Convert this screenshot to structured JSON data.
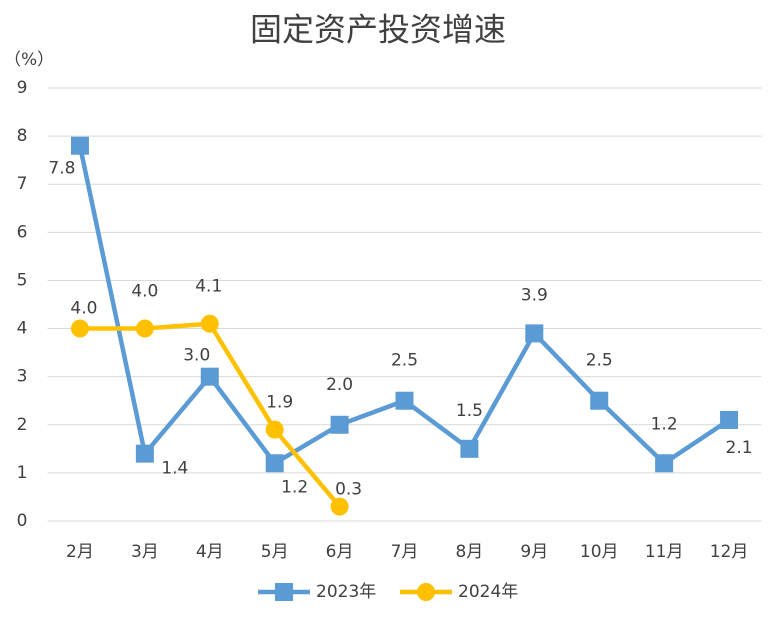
{
  "chart_data": {
    "type": "line",
    "title": "固定资产投资增速",
    "y_label": "（%）",
    "categories": [
      "2月",
      "3月",
      "4月",
      "5月",
      "6月",
      "7月",
      "8月",
      "9月",
      "10月",
      "11月",
      "12月"
    ],
    "series": [
      {
        "name": "2023年",
        "color": "#5b9bd5",
        "marker": "square",
        "values": [
          7.8,
          1.4,
          3.0,
          1.2,
          2.0,
          2.5,
          1.5,
          3.9,
          2.5,
          1.2,
          2.1
        ],
        "value_labels": [
          "7.8",
          "1.4",
          "3.0",
          "1.2",
          "2.0",
          "2.5",
          "1.5",
          "3.9",
          "2.5",
          "1.2",
          "2.1"
        ]
      },
      {
        "name": "2024年",
        "color": "#ffc000",
        "marker": "circle",
        "values": [
          4.0,
          4.0,
          4.1,
          1.9,
          0.3,
          null,
          null,
          null,
          null,
          null,
          null
        ],
        "value_labels": [
          "4.0",
          "4.0",
          "4.1",
          "1.9",
          "0.3",
          null,
          null,
          null,
          null,
          null,
          null
        ]
      }
    ],
    "ylim": [
      0,
      9
    ],
    "yticks": [
      0,
      1,
      2,
      3,
      4,
      5,
      6,
      7,
      8,
      9
    ],
    "grid": true,
    "legend": "bottom"
  }
}
